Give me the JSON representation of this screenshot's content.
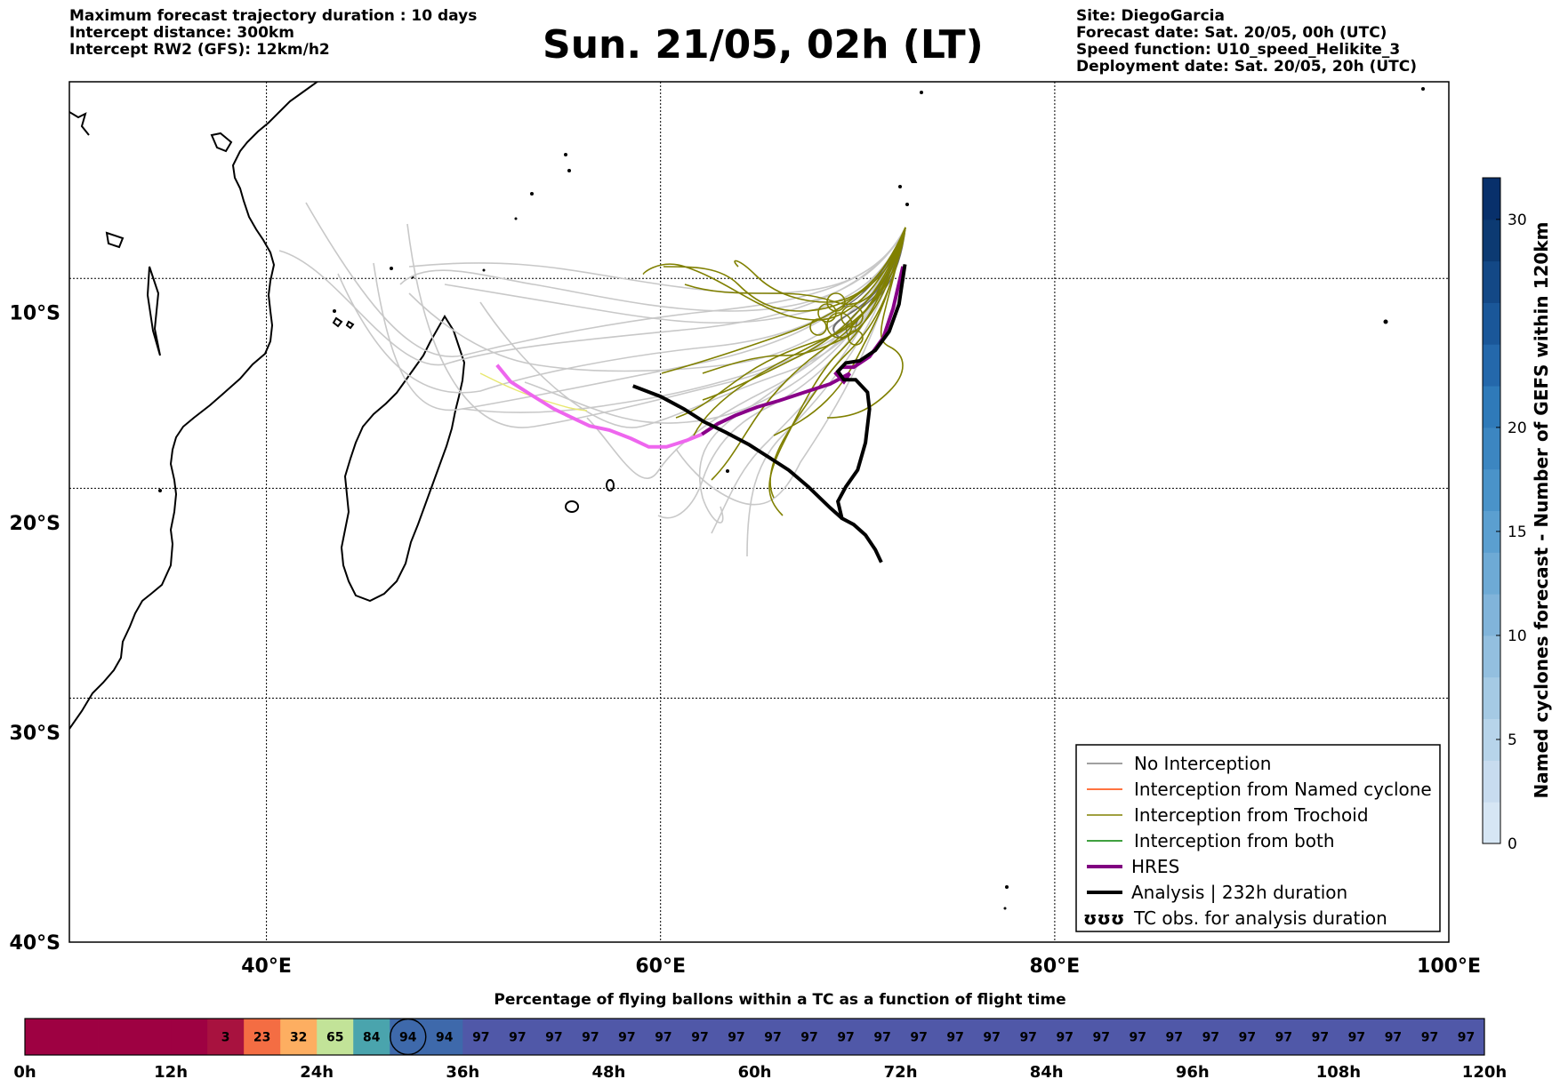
{
  "header_left": [
    "Maximum forecast trajectory duration : 10 days",
    "Intercept distance: 300km",
    "Intercept RW2 (GFS):  12km/h2"
  ],
  "title": "Sun. 21/05, 02h (LT)",
  "header_right": [
    "Site: DiegoGarcia",
    "Forecast date: Sat. 20/05, 00h (UTC)",
    "Speed function: U10_speed_Helikite_3",
    "Deployment date: Sat. 20/05, 20h (UTC)"
  ],
  "map": {
    "lon_range": [
      30,
      100
    ],
    "lat_range": [
      -40,
      1
    ],
    "lon_ticks": [
      {
        "value": 40,
        "label": "40°E"
      },
      {
        "value": 60,
        "label": "60°E"
      },
      {
        "value": 80,
        "label": "80°E"
      },
      {
        "value": 100,
        "label": "100°E"
      }
    ],
    "lat_ticks": [
      {
        "value": -10,
        "label": "10°S"
      },
      {
        "value": -20,
        "label": "20°S"
      },
      {
        "value": -30,
        "label": "30°S"
      },
      {
        "value": -40,
        "label": "40°S"
      }
    ],
    "grid": "dotted",
    "legend_position": "bottom-right",
    "legend": [
      {
        "label": "No Interception",
        "color": "#808080",
        "style": "thin"
      },
      {
        "label": "Interception from Named cyclone",
        "color": "#ff4500",
        "style": "thin"
      },
      {
        "label": "Interception from Trochoid",
        "color": "#808000",
        "style": "thin"
      },
      {
        "label": "Interception from both",
        "color": "#008000",
        "style": "thin"
      },
      {
        "label": "HRES",
        "color": "#800080",
        "style": "thick"
      },
      {
        "label": "Analysis | 232h duration",
        "color": "#000000",
        "style": "thick"
      },
      {
        "label": "TC obs. for analysis duration",
        "color": "#000000",
        "style": "symbol",
        "symbol": "ʊʊʊ"
      }
    ],
    "hres_track": [
      [
        72.3,
        -7.8
      ],
      [
        71.8,
        -9.8
      ],
      [
        71.3,
        -11.2
      ],
      [
        70.6,
        -12.1
      ],
      [
        69.8,
        -12.6
      ],
      [
        69.2,
        -12.6
      ],
      [
        68.9,
        -12.9
      ],
      [
        69.3,
        -13.3
      ],
      [
        69.6,
        -12.9
      ],
      [
        68.6,
        -13.4
      ],
      [
        67.3,
        -13.8
      ],
      [
        66.0,
        -14.2
      ],
      [
        64.9,
        -14.5
      ],
      [
        63.8,
        -14.9
      ],
      [
        62.9,
        -15.3
      ],
      [
        62.1,
        -15.8
      ],
      [
        61.3,
        -16.1
      ],
      [
        60.3,
        -16.4
      ],
      [
        59.4,
        -16.4
      ],
      [
        58.5,
        -16.0
      ],
      [
        57.4,
        -15.6
      ],
      [
        56.4,
        -15.4
      ],
      [
        55.5,
        -15.0
      ],
      [
        54.6,
        -14.6
      ],
      [
        53.4,
        -13.9
      ],
      [
        52.4,
        -13.3
      ],
      [
        51.7,
        -12.5
      ]
    ],
    "analysis_track": [
      [
        72.4,
        -7.7
      ],
      [
        72.1,
        -9.6
      ],
      [
        71.6,
        -10.9
      ],
      [
        70.9,
        -11.8
      ],
      [
        70.1,
        -12.3
      ],
      [
        69.4,
        -12.4
      ],
      [
        69.0,
        -12.8
      ],
      [
        69.3,
        -13.2
      ],
      [
        69.9,
        -13.2
      ],
      [
        70.5,
        -13.8
      ],
      [
        70.6,
        -14.6
      ],
      [
        70.4,
        -16.2
      ],
      [
        70.0,
        -17.5
      ],
      [
        69.4,
        -18.3
      ],
      [
        69.0,
        -19.0
      ],
      [
        69.2,
        -19.8
      ],
      [
        69.8,
        -20.1
      ],
      [
        70.4,
        -20.6
      ],
      [
        70.9,
        -21.3
      ],
      [
        71.2,
        -21.9
      ]
    ],
    "analysis_track_2": [
      [
        69.2,
        -19.8
      ],
      [
        68.6,
        -19.3
      ],
      [
        67.5,
        -18.3
      ],
      [
        66.5,
        -17.5
      ],
      [
        65.5,
        -16.9
      ],
      [
        64.5,
        -16.3
      ],
      [
        63.3,
        -15.7
      ],
      [
        62.2,
        -15.2
      ],
      [
        61.2,
        -14.6
      ],
      [
        60.0,
        -14.0
      ],
      [
        58.6,
        -13.5
      ]
    ]
  },
  "colorbar": {
    "label": "Named cyclones forecast - Number of GEFS within 120km",
    "min": 0,
    "max": 32,
    "ticks": [
      {
        "value": 0,
        "label": "0"
      },
      {
        "value": 5,
        "label": "5"
      },
      {
        "value": 10,
        "label": "10"
      },
      {
        "value": 15,
        "label": "15"
      },
      {
        "value": 20,
        "label": "20"
      },
      {
        "value": 30,
        "label": "30"
      }
    ],
    "colors": [
      "#d6e6f4",
      "#c8dcef",
      "#b7d4ea",
      "#a5cae4",
      "#93bfdf",
      "#81b4da",
      "#6eaad5",
      "#5b9fd0",
      "#4a93c9",
      "#3c86c1",
      "#2f7ab9",
      "#2468ab",
      "#1a5799",
      "#134886",
      "#0c3a72",
      "#08306b"
    ]
  },
  "strip": {
    "title": "Percentage of flying ballons within a TC as a function of flight time",
    "max_hours": 120,
    "ticks": [
      "0h",
      "12h",
      "24h",
      "36h",
      "48h",
      "60h",
      "72h",
      "84h",
      "96h",
      "108h",
      "120h"
    ],
    "cells": [
      "",
      "",
      "",
      "",
      "",
      "3",
      "23",
      "32",
      "65",
      "84",
      "94",
      "94",
      "97",
      "97",
      "97",
      "97",
      "97",
      "97",
      "97",
      "97",
      "97",
      "97",
      "97",
      "97",
      "97",
      "97",
      "97",
      "97",
      "97",
      "97",
      "97",
      "97",
      "97",
      "97",
      "97",
      "97",
      "97",
      "97",
      "97",
      "97"
    ],
    "current_cell": 10
  }
}
